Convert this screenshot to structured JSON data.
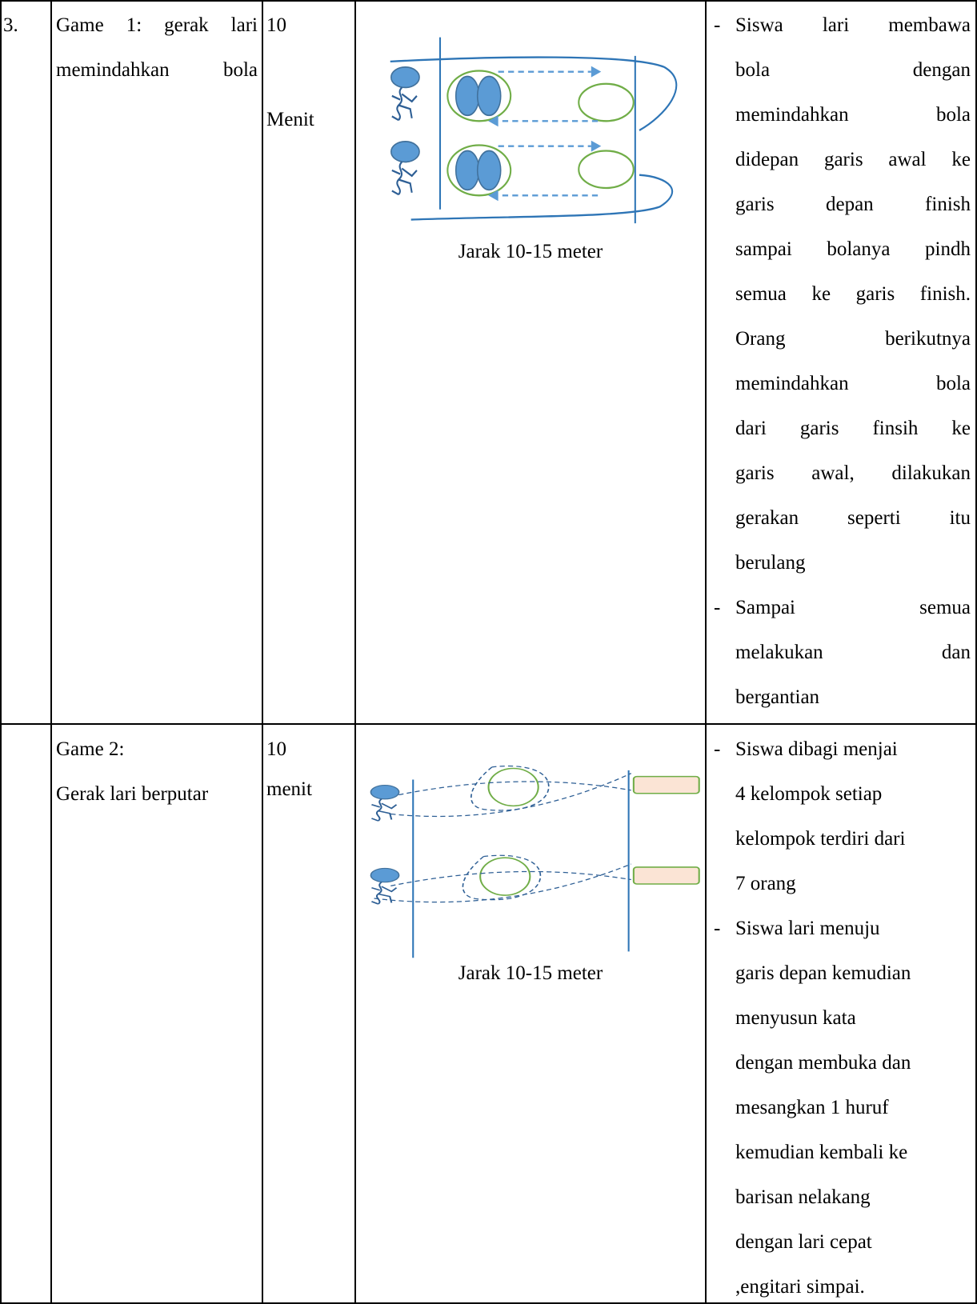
{
  "rows": [
    {
      "number": "3.",
      "activity": [
        "Game 1: gerak lari",
        "memindahkan bola"
      ],
      "duration": [
        "10",
        "Menit"
      ],
      "diagram_caption": "Jarak 10-15 meter",
      "steps": [
        {
          "marker": "-",
          "lines": [
            "Siswa lari membawa",
            "bola dengan",
            "memindahkan bola",
            "didepan garis awal ke",
            "garis depan finish",
            "sampai bolanya pindh",
            "semua ke garis finish.",
            "Orang berikutnya",
            "memindahkan bola",
            "dari garis finsih ke",
            "garis awal, dilakukan",
            "gerakan seperti itu",
            "berulang"
          ]
        },
        {
          "marker": "-",
          "lines": [
            "Sampai semua",
            "melakukan dan",
            "bergantian"
          ]
        }
      ]
    },
    {
      "activity": [
        "Game 2:",
        "Gerak lari berputar"
      ],
      "duration": [
        "10",
        "menit"
      ],
      "diagram_caption": "Jarak 10-15 meter",
      "steps": [
        {
          "marker": "-",
          "lines": [
            "Siswa dibagi menjai",
            "4 kelompok setiap",
            "kelompok terdiri dari",
            "7 orang"
          ]
        },
        {
          "marker": "-",
          "lines": [
            "Siswa lari menuju",
            "garis depan kemudian",
            "menyusun kata",
            "dengan membuka dan",
            "mesangkan 1 huruf",
            "kemudian kembali ke",
            "barisan nelakang",
            "dengan lari cepat",
            ",engitari simpai."
          ]
        }
      ]
    }
  ]
}
